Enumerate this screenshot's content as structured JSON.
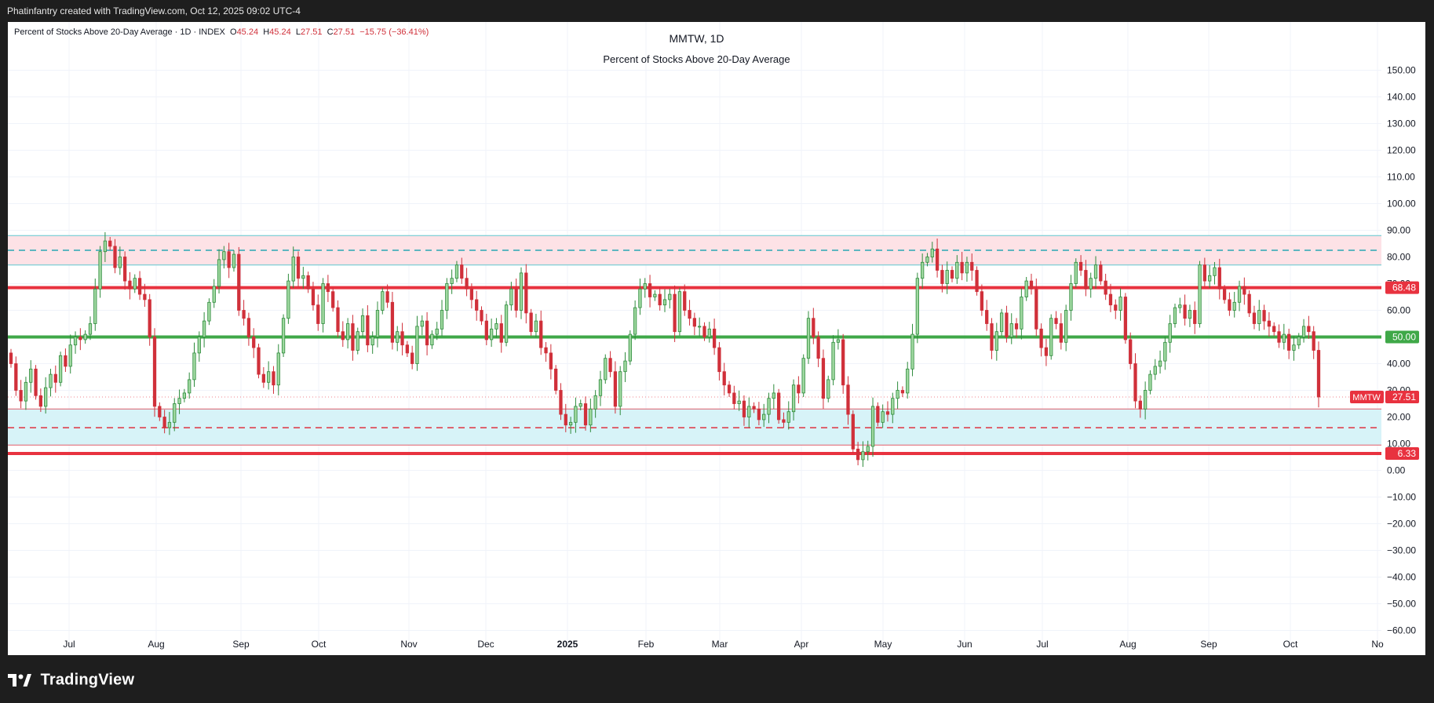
{
  "header": {
    "attribution": "Phatinfantry created with TradingView.com, Oct 12, 2025 09:02 UTC-4"
  },
  "legend": {
    "name": "Percent of Stocks Above 20-Day Average",
    "interval": "1D",
    "exchange": "INDEX",
    "open_label": "O",
    "open": "45.24",
    "high_label": "H",
    "high": "45.24",
    "low_label": "L",
    "low": "27.51",
    "close_label": "C",
    "close": "27.51",
    "change": "−15.75 (−36.41%)"
  },
  "titles": {
    "symbol_line": "MMTW, 1D",
    "description": "Percent of Stocks Above 20-Day Average"
  },
  "footer": {
    "brand": "TradingView"
  },
  "colors": {
    "up": "#26a69a",
    "up_fill": "#9fd8a0",
    "up_border": "#2e8b3c",
    "down": "#d0303a",
    "resistance_zone": "#fde2e6",
    "resistance_zone_border": "#5fc7cf",
    "support_zone": "#d7f3f8",
    "support_zone_border": "#e05d6a",
    "red_line": "#e8323f",
    "green_line": "#3fa848",
    "axis_text": "#131722",
    "grid": "#f0f3fa"
  },
  "chart_data": {
    "type": "candlestick",
    "symbol": "MMTW",
    "interval": "1D",
    "title": "Percent of Stocks Above 20-Day Average",
    "ylim": [
      -67,
      155
    ],
    "y_ticks": [
      "150.00",
      "140.00",
      "130.00",
      "120.00",
      "110.00",
      "100.00",
      "90.00",
      "80.00",
      "70.00",
      "60.00",
      "50.00",
      "40.00",
      "30.00",
      "20.00",
      "10.00",
      "0.00",
      "−10.00",
      "−20.00",
      "−30.00",
      "−40.00",
      "−50.00",
      "−60.00"
    ],
    "x_ticks": [
      {
        "label": "Jul",
        "bold": false
      },
      {
        "label": "Aug",
        "bold": false
      },
      {
        "label": "Sep",
        "bold": false
      },
      {
        "label": "Oct",
        "bold": false
      },
      {
        "label": "Nov",
        "bold": false
      },
      {
        "label": "Dec",
        "bold": false
      },
      {
        "label": "2025",
        "bold": true
      },
      {
        "label": "Feb",
        "bold": false
      },
      {
        "label": "Mar",
        "bold": false
      },
      {
        "label": "Apr",
        "bold": false
      },
      {
        "label": "May",
        "bold": false
      },
      {
        "label": "Jun",
        "bold": false
      },
      {
        "label": "Jul",
        "bold": false
      },
      {
        "label": "Aug",
        "bold": false
      },
      {
        "label": "Sep",
        "bold": false
      },
      {
        "label": "Oct",
        "bold": false
      },
      {
        "label": "No",
        "bold": false
      }
    ],
    "horizontal_lines": [
      {
        "value": 68.48,
        "label": "68.48",
        "color": "#e8323f",
        "style": "solid"
      },
      {
        "value": 50.0,
        "label": "50.00",
        "color": "#3fa848",
        "style": "solid"
      },
      {
        "value": 6.33,
        "label": "6.33",
        "color": "#e8323f",
        "style": "solid"
      }
    ],
    "zones": [
      {
        "from": 77,
        "to": 88,
        "mid": 82.5,
        "name": "resistance"
      },
      {
        "from": 9.5,
        "to": 23,
        "mid": 16,
        "name": "support"
      }
    ],
    "last_price": {
      "symbol": "MMTW",
      "value": 27.51,
      "label": "27.51"
    },
    "closes": [
      40,
      30,
      26,
      33,
      38,
      28,
      24,
      31,
      36,
      33,
      43,
      39,
      47,
      50,
      49,
      51,
      55,
      68,
      82,
      86,
      84,
      76,
      80,
      71,
      68,
      72,
      66,
      64,
      50,
      24,
      20,
      16,
      18,
      25,
      27,
      29,
      34,
      44,
      50,
      56,
      63,
      69,
      79,
      82,
      76,
      81,
      60,
      57,
      50,
      46,
      36,
      33,
      37,
      32,
      44,
      57,
      71,
      80,
      72,
      73,
      68,
      62,
      55,
      70,
      67,
      61,
      52,
      49,
      55,
      45,
      52,
      58,
      47,
      50,
      60,
      67,
      63,
      48,
      52,
      47,
      44,
      40,
      54,
      56,
      47,
      51,
      53,
      60,
      70,
      72,
      77,
      72,
      68,
      64,
      60,
      56,
      49,
      53,
      55,
      48,
      62,
      68,
      60,
      74,
      59,
      52,
      56,
      46,
      44,
      38,
      30,
      21,
      17,
      18,
      24,
      25,
      17,
      23,
      28,
      34,
      42,
      37,
      24,
      37,
      41,
      51,
      61,
      68,
      70,
      65,
      66,
      62,
      64,
      66,
      52,
      67,
      60,
      57,
      54,
      54,
      50,
      53,
      46,
      37,
      32,
      29,
      25,
      26,
      20,
      24,
      23,
      19,
      21,
      27,
      29,
      19,
      18,
      22,
      32,
      29,
      42,
      57,
      50,
      42,
      27,
      34,
      48,
      49,
      32,
      21,
      8,
      4,
      7,
      9,
      24,
      18,
      22,
      21,
      27,
      30,
      29,
      38,
      51,
      72,
      78,
      80,
      83,
      75,
      70,
      75,
      72,
      78,
      74,
      78,
      75,
      67,
      60,
      55,
      45,
      52,
      59,
      50,
      55,
      53,
      65,
      71,
      68,
      53,
      46,
      43,
      57,
      55,
      48,
      60,
      70,
      78,
      75,
      68,
      72,
      77,
      71,
      66,
      62,
      60,
      65,
      49,
      40,
      26,
      23,
      30,
      36,
      39,
      41,
      48,
      55,
      61,
      62,
      57,
      60,
      55,
      77,
      71,
      73,
      76,
      68,
      64,
      60,
      63,
      69,
      66,
      59,
      55,
      60,
      56,
      54,
      52,
      48,
      51,
      45,
      47,
      50,
      54,
      52,
      45,
      27.51
    ]
  }
}
